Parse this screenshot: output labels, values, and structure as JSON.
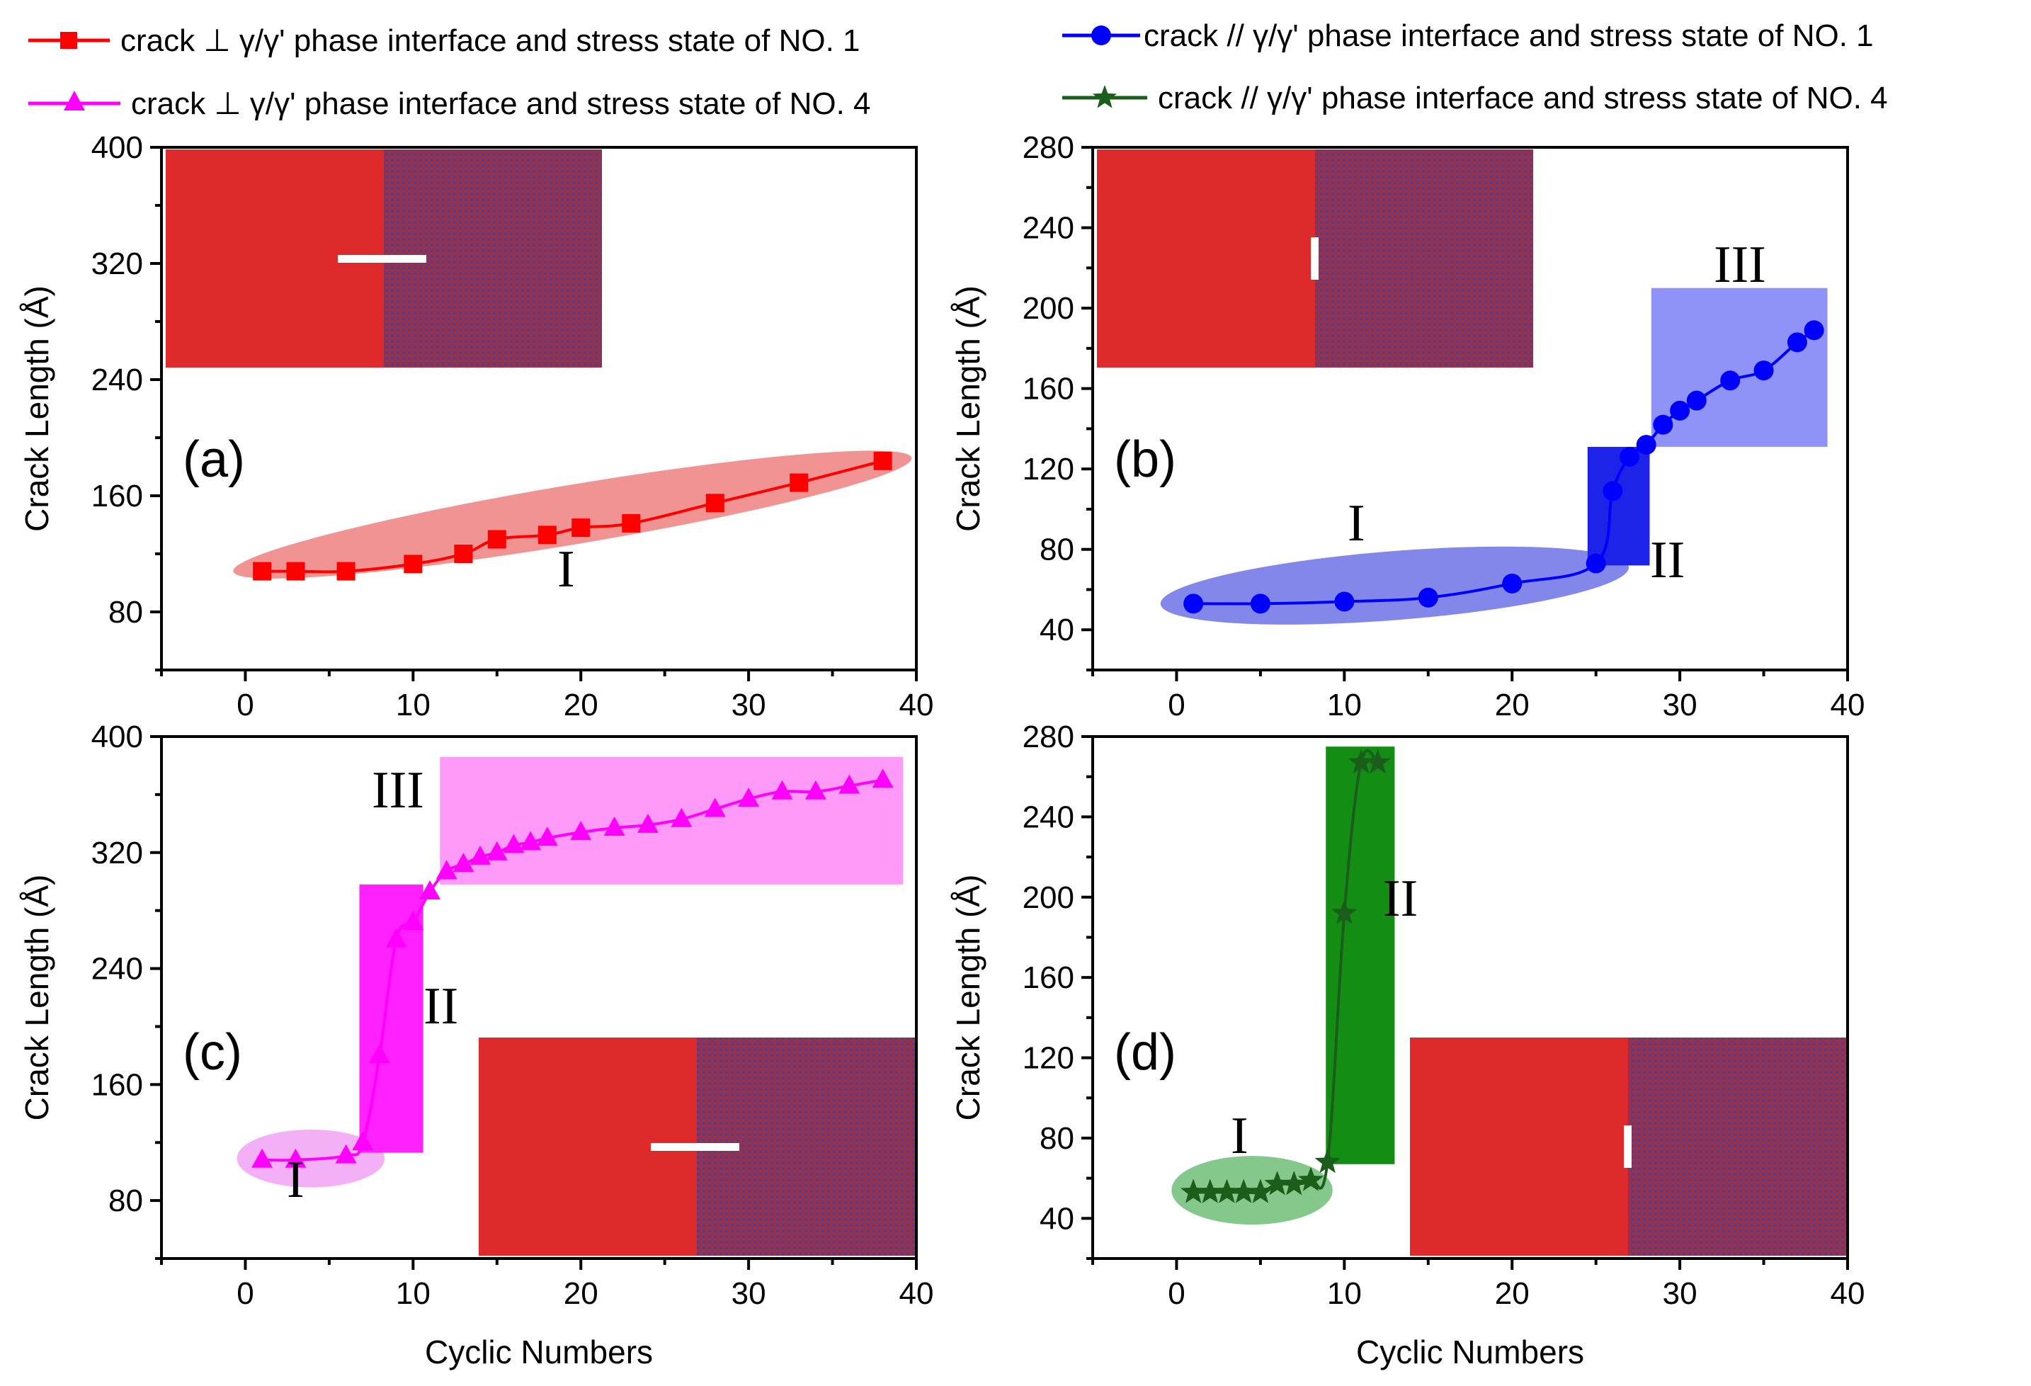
{
  "legend": [
    {
      "text": "crack  ⊥   γ/γ' phase interface  and stress state of NO. 1",
      "color": "#ff0000",
      "marker": "square"
    },
    {
      "text": "crack // γ/γ' phase interface  and stress state of  NO. 1",
      "color": "#0000ff",
      "marker": "circle"
    },
    {
      "text": "crack  ⊥   γ/γ' phase interface  and stress state of NO. 4",
      "color": "#ff00ff",
      "marker": "triangle"
    },
    {
      "text": "crack // γ/γ' phase interface  and stress state of  NO. 4",
      "color": "#1b5e1b",
      "marker": "star"
    }
  ],
  "xlabel": "Cyclic Numbers",
  "ylabel": "Crack Length (Å)",
  "chart_data": [
    {
      "panel": "(a)",
      "type": "line",
      "xlim": [
        -5,
        40
      ],
      "ylim": [
        40,
        400
      ],
      "xticks": [
        0,
        10,
        20,
        30,
        40
      ],
      "yticks": [
        80,
        160,
        240,
        320,
        400
      ],
      "series": [
        {
          "color": "#ff0000",
          "marker": "square",
          "x": [
            1,
            3,
            6,
            10,
            13,
            15,
            18,
            20,
            23,
            28,
            33,
            38
          ],
          "y": [
            108,
            108,
            108,
            113,
            120,
            130,
            133,
            138,
            141,
            155,
            169,
            184
          ]
        }
      ],
      "stages": [
        {
          "label": "I",
          "shape": "ellipse",
          "color": "#f08080",
          "x": [
            -1,
            40
          ],
          "y": [
            95,
            199
          ]
        }
      ],
      "inset": "top-left",
      "crack": "horizontal"
    },
    {
      "panel": "(b)",
      "type": "line",
      "xlim": [
        -5,
        40
      ],
      "ylim": [
        20,
        280
      ],
      "xticks": [
        0,
        10,
        20,
        30,
        40
      ],
      "yticks": [
        40,
        80,
        120,
        160,
        200,
        240,
        280
      ],
      "series": [
        {
          "color": "#0000ff",
          "marker": "circle",
          "x": [
            1,
            5,
            10,
            15,
            20,
            25,
            26,
            27,
            28,
            29,
            30,
            31,
            33,
            35,
            37,
            38
          ],
          "y": [
            53,
            53,
            54,
            56,
            63,
            73,
            109,
            126,
            132,
            142,
            149,
            154,
            164,
            169,
            183,
            189
          ]
        }
      ],
      "stages": [
        {
          "label": "I",
          "shape": "ellipse",
          "color": "#6e72e6",
          "x": [
            -1,
            27
          ],
          "y": [
            40,
            84
          ]
        },
        {
          "label": "II",
          "shape": "rect",
          "color": "#1d24e8",
          "x": [
            24.5,
            28.2
          ],
          "y": [
            72,
            131
          ]
        },
        {
          "label": "III",
          "shape": "rect",
          "color": "#8f93f7",
          "x": [
            28.3,
            38.8
          ],
          "y": [
            131,
            210
          ]
        }
      ],
      "inset": "top-left",
      "crack": "vertical"
    },
    {
      "panel": "(c)",
      "type": "line",
      "xlim": [
        -5,
        40
      ],
      "ylim": [
        40,
        400
      ],
      "xticks": [
        0,
        10,
        20,
        30,
        40
      ],
      "yticks": [
        80,
        160,
        240,
        320,
        400
      ],
      "series": [
        {
          "color": "#ff00ff",
          "marker": "triangle",
          "x": [
            1,
            3,
            6,
            7,
            8,
            9,
            10,
            11,
            12,
            13,
            14,
            15,
            16,
            17,
            18,
            20,
            22,
            24,
            26,
            28,
            30,
            32,
            34,
            36,
            38
          ],
          "y": [
            108,
            108,
            111,
            120,
            180,
            260,
            272,
            293,
            307,
            312,
            317,
            320,
            325,
            327,
            330,
            334,
            337,
            339,
            343,
            350,
            357,
            362,
            362,
            366,
            370
          ]
        }
      ],
      "stages": [
        {
          "label": "I",
          "shape": "ellipse",
          "color": "#f2a2f5",
          "x": [
            -0.5,
            8.3
          ],
          "y": [
            88,
            130
          ]
        },
        {
          "label": "II",
          "shape": "rect",
          "color": "#ff22ff",
          "x": [
            6.8,
            10.6
          ],
          "y": [
            113,
            298
          ]
        },
        {
          "label": "III",
          "shape": "rect",
          "color": "#ff9af8",
          "x": [
            11.6,
            39.2
          ],
          "y": [
            298,
            386
          ]
        }
      ],
      "inset": "bottom-right",
      "crack": "horizontal"
    },
    {
      "panel": "(d)",
      "type": "line",
      "xlim": [
        -5,
        40
      ],
      "ylim": [
        20,
        280
      ],
      "xticks": [
        0,
        10,
        20,
        30,
        40
      ],
      "yticks": [
        40,
        80,
        120,
        160,
        200,
        240,
        280
      ],
      "series": [
        {
          "color": "#1b5e1b",
          "marker": "star",
          "x": [
            1,
            2,
            3,
            4,
            5,
            6,
            7,
            8,
            9,
            10,
            11,
            12
          ],
          "y": [
            53,
            53,
            53,
            53,
            53,
            57,
            57,
            59,
            68,
            192,
            267,
            267
          ]
        }
      ],
      "stages": [
        {
          "label": "I",
          "shape": "ellipse",
          "color": "#6fbe78",
          "x": [
            -0.3,
            9.3
          ],
          "y": [
            36,
            72
          ]
        },
        {
          "label": "II",
          "shape": "rect",
          "color": "#138d13",
          "x": [
            8.9,
            13.0
          ],
          "y": [
            67,
            275
          ]
        }
      ],
      "inset": "bottom-right",
      "crack": "vertical"
    }
  ]
}
